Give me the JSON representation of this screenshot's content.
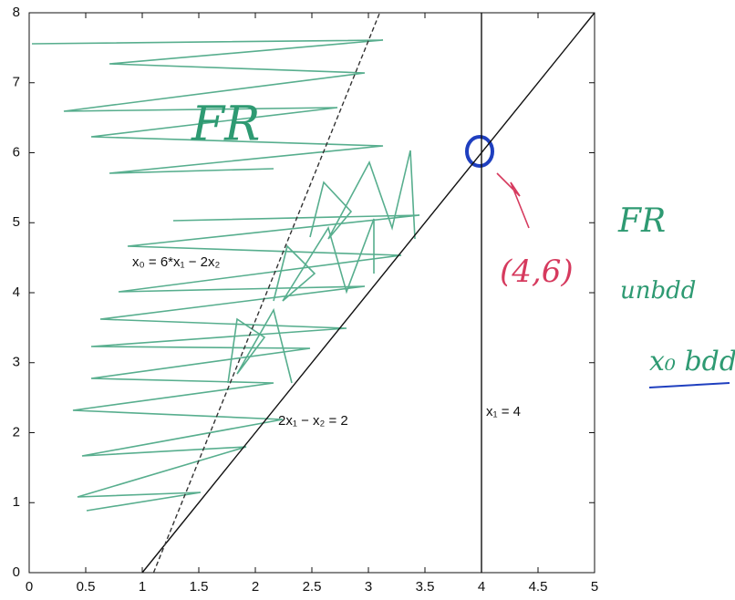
{
  "chart_data": {
    "type": "line",
    "series": [
      {
        "x": [
          1,
          5
        ],
        "values": [
          0,
          8
        ],
        "color": "#111111"
      },
      {
        "x": [
          4,
          4
        ],
        "values": [
          0,
          8
        ],
        "color": "#111111"
      },
      {
        "x": [
          1.1,
          3.1
        ],
        "values": [
          0,
          8
        ],
        "color": "#333333",
        "dashed": true
      }
    ],
    "xlim": [
      0,
      5
    ],
    "ylim": [
      0,
      8
    ],
    "xticks": [
      0,
      0.5,
      1,
      1.5,
      2,
      2.5,
      3,
      3.5,
      4,
      4.5,
      5
    ],
    "yticks": [
      0,
      1,
      2,
      3,
      4,
      5,
      6,
      7,
      8
    ],
    "annotations": [
      "x₀ = 6*x₁ − 2x₂",
      "2x₁ − x₂ = 2",
      "x₁ = 4"
    ],
    "handwriting": [
      "FR",
      "(4,6)",
      "FR",
      "unbdd",
      "x₀ bdd"
    ]
  }
}
